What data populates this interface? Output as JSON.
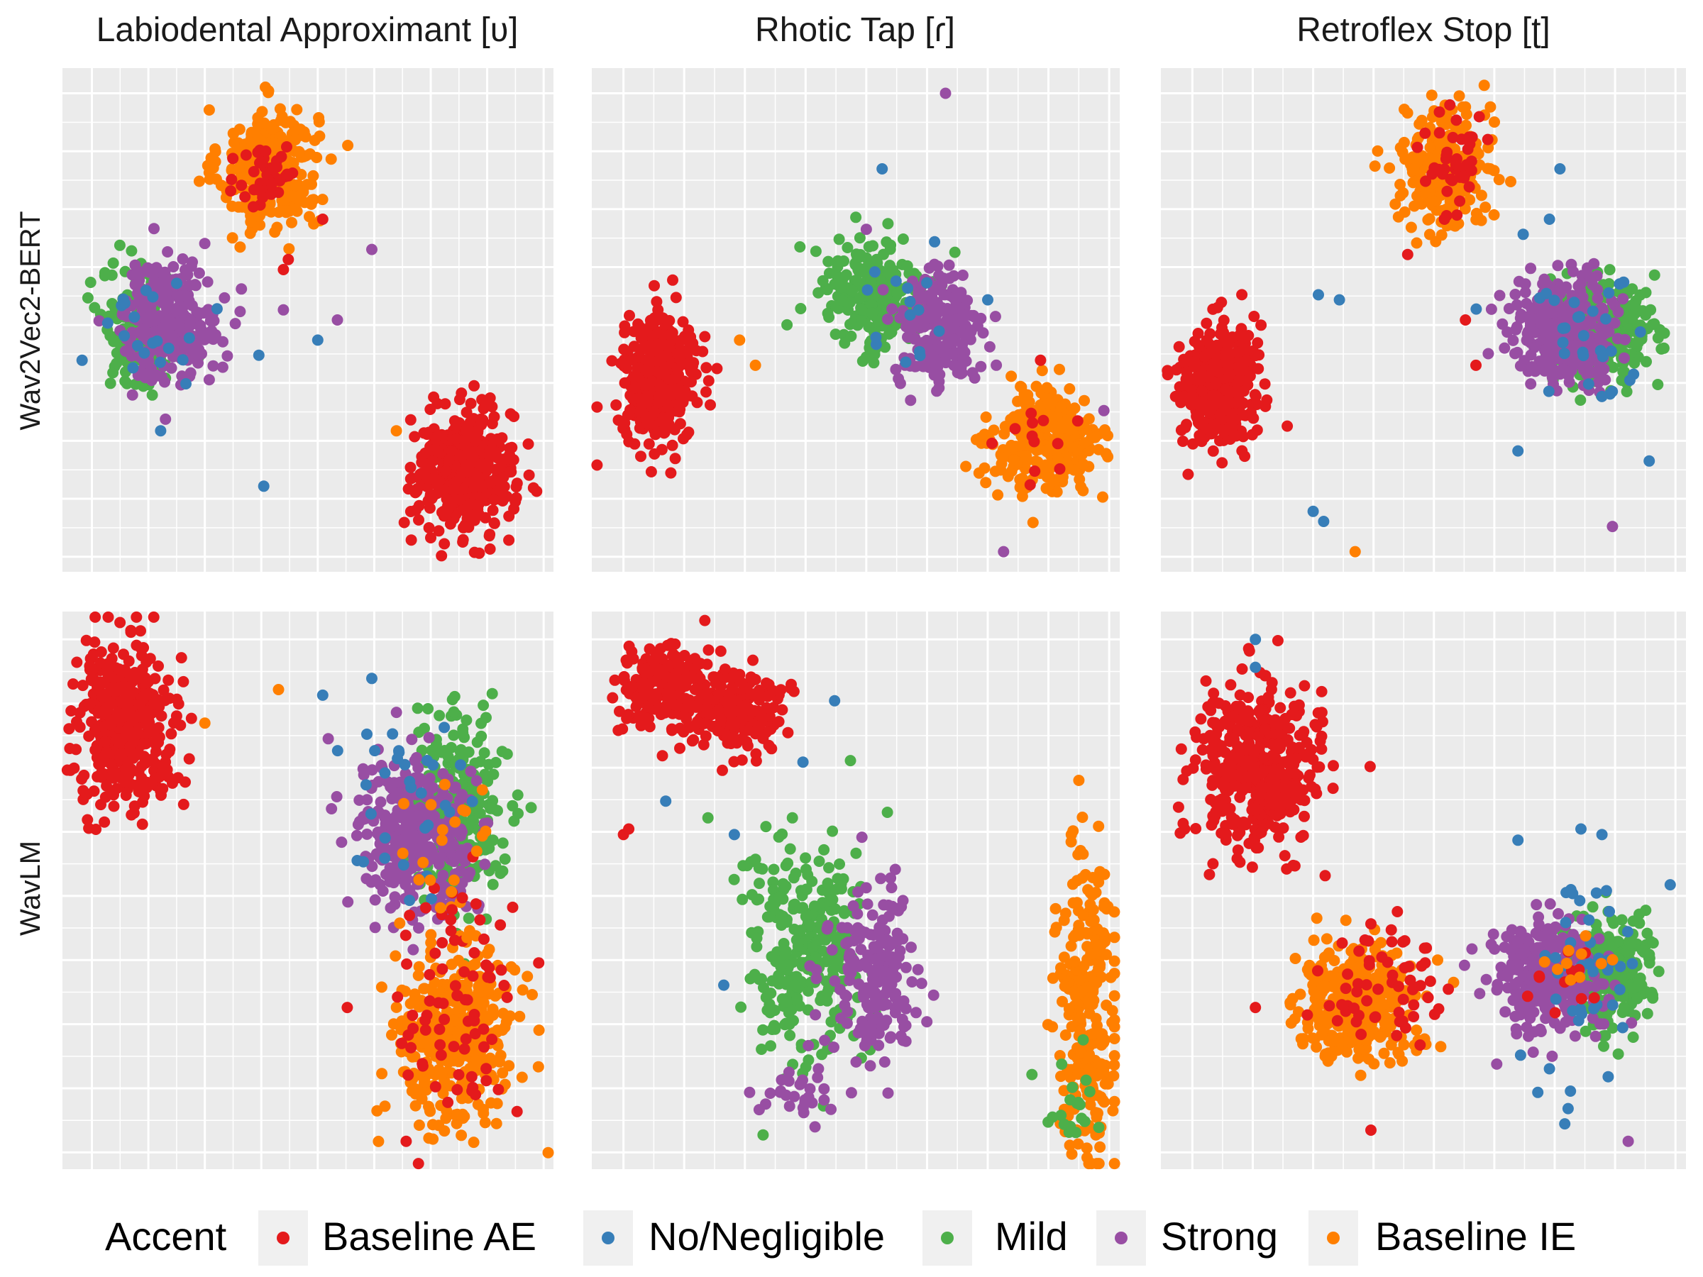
{
  "chart_data": {
    "type": "scatter",
    "facet_layout": "2 rows x 3 columns",
    "column_titles": [
      "Labiodental Approximant [ʋ]",
      "Rhotic Tap [ɾ]",
      "Retroflex Stop [ʈ]"
    ],
    "row_titles": [
      "Wav2Vec2-BERT",
      "WavLM"
    ],
    "legend": {
      "title": "Accent",
      "position": "bottom",
      "entries": [
        {
          "label": "Baseline AE",
          "color": "#e41a1c"
        },
        {
          "label": "No/Negligible",
          "color": "#377eb8"
        },
        {
          "label": "Mild",
          "color": "#4daf4a"
        },
        {
          "label": "Strong",
          "color": "#984ea3"
        },
        {
          "label": "Baseline IE",
          "color": "#ff7f00"
        }
      ]
    },
    "axes": {
      "xlim": [
        0,
        100
      ],
      "ylim": [
        0,
        100
      ],
      "tick_labels": "none",
      "grid": true
    },
    "panels": [
      {
        "row": "Wav2Vec2-BERT",
        "column": "Labiodental Approximant [ʋ]",
        "clusters": [
          {
            "accent": "Baseline IE",
            "cx": 42,
            "cy": 80,
            "sx": 5,
            "sy": 6,
            "n": 300
          },
          {
            "accent": "Baseline AE",
            "cx": 42,
            "cy": 79,
            "sx": 3,
            "sy": 4,
            "n": 45
          },
          {
            "accent": "Mild",
            "cx": 16,
            "cy": 48,
            "sx": 4,
            "sy": 6,
            "n": 160
          },
          {
            "accent": "Strong",
            "cx": 22,
            "cy": 50,
            "sx": 5,
            "sy": 6,
            "n": 260
          },
          {
            "accent": "No/Negligible",
            "cx": 18,
            "cy": 47,
            "sx": 6,
            "sy": 5,
            "n": 20
          },
          {
            "accent": "Baseline AE",
            "cx": 82,
            "cy": 20,
            "sx": 5,
            "sy": 6,
            "n": 420
          }
        ],
        "outliers": [
          {
            "accent": "No/Negligible",
            "x": 4,
            "y": 42
          },
          {
            "accent": "No/Negligible",
            "x": 20,
            "y": 28
          },
          {
            "accent": "No/Negligible",
            "x": 41,
            "y": 17
          },
          {
            "accent": "No/Negligible",
            "x": 52,
            "y": 46
          },
          {
            "accent": "No/Negligible",
            "x": 40,
            "y": 43
          },
          {
            "accent": "Strong",
            "x": 63,
            "y": 64
          },
          {
            "accent": "Strong",
            "x": 56,
            "y": 50
          },
          {
            "accent": "Strong",
            "x": 45,
            "y": 52
          },
          {
            "accent": "Baseline AE",
            "x": 46,
            "y": 62
          },
          {
            "accent": "Baseline AE",
            "x": 45,
            "y": 60
          },
          {
            "accent": "Baseline AE",
            "x": 53,
            "y": 70
          },
          {
            "accent": "Baseline IE",
            "x": 68,
            "y": 28
          }
        ]
      },
      {
        "row": "Wav2Vec2-BERT",
        "column": "Rhotic Tap [ɾ]",
        "clusters": [
          {
            "accent": "Baseline AE",
            "cx": 13,
            "cy": 38,
            "sx": 3.5,
            "sy": 6,
            "n": 380
          },
          {
            "accent": "Mild",
            "cx": 53,
            "cy": 55,
            "sx": 5,
            "sy": 6,
            "n": 220
          },
          {
            "accent": "Strong",
            "cx": 66,
            "cy": 48,
            "sx": 4,
            "sy": 6,
            "n": 220
          },
          {
            "accent": "No/Negligible",
            "cx": 58,
            "cy": 50,
            "sx": 7,
            "sy": 6,
            "n": 15
          },
          {
            "accent": "Baseline IE",
            "cx": 86,
            "cy": 26,
            "sx": 5,
            "sy": 5,
            "n": 300
          },
          {
            "accent": "Baseline AE",
            "cx": 86,
            "cy": 25,
            "sx": 4,
            "sy": 4,
            "n": 12
          }
        ],
        "outliers": [
          {
            "accent": "Strong",
            "x": 67,
            "y": 95
          },
          {
            "accent": "No/Negligible",
            "x": 55,
            "y": 80
          },
          {
            "accent": "No/Negligible",
            "x": 75,
            "y": 54
          },
          {
            "accent": "Strong",
            "x": 78,
            "y": 4
          },
          {
            "accent": "Strong",
            "x": 52,
            "y": 68
          },
          {
            "accent": "Baseline IE",
            "x": 28,
            "y": 46
          },
          {
            "accent": "Baseline IE",
            "x": 31,
            "y": 41
          },
          {
            "accent": "Baseline AE",
            "x": 85,
            "y": 42
          },
          {
            "accent": "Strong",
            "x": 97,
            "y": 32
          }
        ]
      },
      {
        "row": "Wav2Vec2-BERT",
        "column": "Retroflex Stop [ʈ]",
        "clusters": [
          {
            "accent": "Baseline IE",
            "cx": 54,
            "cy": 80,
            "sx": 4,
            "sy": 6,
            "n": 260
          },
          {
            "accent": "Baseline AE",
            "cx": 55,
            "cy": 82,
            "sx": 3,
            "sy": 5,
            "n": 40
          },
          {
            "accent": "Baseline AE",
            "cx": 11,
            "cy": 37,
            "sx": 3.5,
            "sy": 6,
            "n": 380
          },
          {
            "accent": "Mild",
            "cx": 84,
            "cy": 48,
            "sx": 5,
            "sy": 5,
            "n": 240
          },
          {
            "accent": "Strong",
            "cx": 77,
            "cy": 48,
            "sx": 5,
            "sy": 5,
            "n": 320
          },
          {
            "accent": "No/Negligible",
            "cx": 80,
            "cy": 47,
            "sx": 7,
            "sy": 6,
            "n": 30
          }
        ],
        "outliers": [
          {
            "accent": "No/Negligible",
            "x": 30,
            "y": 55
          },
          {
            "accent": "No/Negligible",
            "x": 34,
            "y": 54
          },
          {
            "accent": "No/Negligible",
            "x": 69,
            "y": 67
          },
          {
            "accent": "No/Negligible",
            "x": 74,
            "y": 70
          },
          {
            "accent": "No/Negligible",
            "x": 68,
            "y": 24
          },
          {
            "accent": "No/Negligible",
            "x": 29,
            "y": 12
          },
          {
            "accent": "No/Negligible",
            "x": 31,
            "y": 10
          },
          {
            "accent": "No/Negligible",
            "x": 93,
            "y": 22
          },
          {
            "accent": "No/Negligible",
            "x": 76,
            "y": 80
          },
          {
            "accent": "Baseline AE",
            "x": 47,
            "y": 63
          },
          {
            "accent": "Baseline AE",
            "x": 58,
            "y": 50
          },
          {
            "accent": "Baseline AE",
            "x": 60,
            "y": 41
          },
          {
            "accent": "Baseline AE",
            "x": 54,
            "y": 70
          },
          {
            "accent": "Baseline IE",
            "x": 37,
            "y": 4
          },
          {
            "accent": "Strong",
            "x": 86,
            "y": 9
          }
        ]
      },
      {
        "row": "WavLM",
        "column": "Labiodental Approximant [ʋ]",
        "clusters": [
          {
            "accent": "Baseline AE",
            "cx": 13,
            "cy": 80,
            "sx": 5,
            "sy": 7,
            "n": 420
          },
          {
            "accent": "Mild",
            "cx": 80,
            "cy": 64,
            "sx": 5,
            "sy": 8,
            "n": 260
          },
          {
            "accent": "Strong",
            "cx": 72,
            "cy": 60,
            "sx": 6,
            "sy": 7,
            "n": 320
          },
          {
            "accent": "No/Negligible",
            "cx": 70,
            "cy": 63,
            "sx": 7,
            "sy": 8,
            "n": 30
          },
          {
            "accent": "Baseline IE",
            "cx": 80,
            "cy": 24,
            "sx": 6,
            "sy": 8,
            "n": 380
          },
          {
            "accent": "Baseline AE",
            "cx": 80,
            "cy": 30,
            "sx": 6,
            "sy": 12,
            "n": 80
          },
          {
            "accent": "Baseline IE",
            "cx": 78,
            "cy": 58,
            "sx": 5,
            "sy": 7,
            "n": 20
          }
        ],
        "outliers": [
          {
            "accent": "Baseline IE",
            "x": 44,
            "y": 86
          },
          {
            "accent": "Baseline IE",
            "x": 29,
            "y": 80
          },
          {
            "accent": "No/Negligible",
            "x": 53,
            "y": 85
          },
          {
            "accent": "No/Negligible",
            "x": 63,
            "y": 88
          },
          {
            "accent": "No/Negligible",
            "x": 62,
            "y": 78
          },
          {
            "accent": "Baseline AE",
            "x": 58,
            "y": 29
          },
          {
            "accent": "Baseline AE",
            "x": 97,
            "y": 37
          },
          {
            "accent": "Baseline AE",
            "x": 70,
            "y": 5
          }
        ]
      },
      {
        "row": "WavLM",
        "column": "Rhotic Tap [ɾ]",
        "clusters": [
          {
            "accent": "Baseline AE",
            "cx": 15,
            "cy": 86,
            "sx": 5,
            "sy": 4,
            "n": 220
          },
          {
            "accent": "Baseline AE",
            "cx": 28,
            "cy": 82,
            "sx": 4,
            "sy": 4,
            "n": 160
          },
          {
            "accent": "Mild",
            "cx": 40,
            "cy": 38,
            "sx": 6,
            "sy": 10,
            "n": 280
          },
          {
            "accent": "Strong",
            "cx": 53,
            "cy": 34,
            "sx": 4,
            "sy": 8,
            "n": 180
          },
          {
            "accent": "Strong",
            "cx": 40,
            "cy": 15,
            "sx": 4,
            "sy": 3,
            "n": 30
          },
          {
            "accent": "Baseline IE",
            "cx": 94,
            "cy": 28,
            "sx": 3,
            "sy": 14,
            "n": 260
          },
          {
            "accent": "Mild",
            "cx": 91,
            "cy": 12,
            "sx": 3,
            "sy": 5,
            "n": 20
          }
        ],
        "outliers": [
          {
            "accent": "No/Negligible",
            "x": 46,
            "y": 84
          },
          {
            "accent": "No/Negligible",
            "x": 40,
            "y": 73
          },
          {
            "accent": "No/Negligible",
            "x": 27,
            "y": 60
          },
          {
            "accent": "No/Negligible",
            "x": 25,
            "y": 33
          },
          {
            "accent": "No/Negligible",
            "x": 14,
            "y": 66
          },
          {
            "accent": "Baseline AE",
            "x": 6,
            "y": 60
          },
          {
            "accent": "Baseline AE",
            "x": 7,
            "y": 61
          },
          {
            "accent": "Mild",
            "x": 22,
            "y": 63
          },
          {
            "accent": "Mild",
            "x": 38,
            "y": 63
          },
          {
            "accent": "Mild",
            "x": 56,
            "y": 64
          }
        ]
      },
      {
        "row": "WavLM",
        "column": "Retroflex Stop [ʈ]",
        "clusters": [
          {
            "accent": "Baseline AE",
            "cx": 18,
            "cy": 72,
            "sx": 6,
            "sy": 7,
            "n": 440
          },
          {
            "accent": "Baseline IE",
            "cx": 37,
            "cy": 30,
            "sx": 6,
            "sy": 5,
            "n": 320
          },
          {
            "accent": "Baseline AE",
            "cx": 42,
            "cy": 34,
            "sx": 6,
            "sy": 5,
            "n": 60
          },
          {
            "accent": "Mild",
            "cx": 86,
            "cy": 35,
            "sx": 4,
            "sy": 5,
            "n": 220
          },
          {
            "accent": "Strong",
            "cx": 73,
            "cy": 35,
            "sx": 5,
            "sy": 5,
            "n": 280
          },
          {
            "accent": "No/Negligible",
            "cx": 80,
            "cy": 34,
            "sx": 6,
            "sy": 9,
            "n": 40
          },
          {
            "accent": "Baseline AE",
            "cx": 78,
            "cy": 34,
            "sx": 4,
            "sy": 3,
            "n": 12
          },
          {
            "accent": "Baseline IE",
            "cx": 80,
            "cy": 38,
            "sx": 4,
            "sy": 3,
            "n": 10
          }
        ],
        "outliers": [
          {
            "accent": "No/Negligible",
            "x": 18,
            "y": 95
          },
          {
            "accent": "No/Negligible",
            "x": 18,
            "y": 90
          },
          {
            "accent": "No/Negligible",
            "x": 68,
            "y": 59
          },
          {
            "accent": "No/Negligible",
            "x": 80,
            "y": 61
          },
          {
            "accent": "No/Negligible",
            "x": 84,
            "y": 60
          },
          {
            "accent": "No/Negligible",
            "x": 97,
            "y": 51
          },
          {
            "accent": "No/Negligible",
            "x": 74,
            "y": 18
          },
          {
            "accent": "No/Negligible",
            "x": 78,
            "y": 14
          },
          {
            "accent": "Baseline AE",
            "x": 40,
            "y": 7
          },
          {
            "accent": "Baseline AE",
            "x": 40,
            "y": 44
          },
          {
            "accent": "Baseline AE",
            "x": 18,
            "y": 29
          },
          {
            "accent": "Strong",
            "x": 89,
            "y": 5
          }
        ]
      }
    ]
  }
}
